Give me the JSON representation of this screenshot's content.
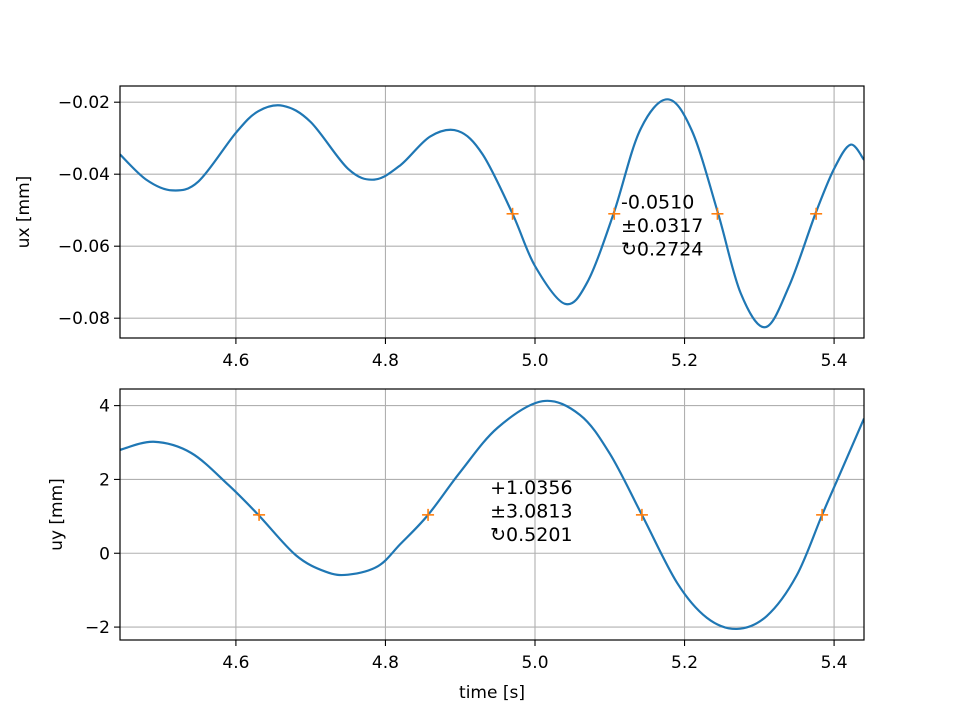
{
  "chart_data": [
    {
      "type": "line",
      "ylabel": "ux [mm]",
      "xlabel": "",
      "xlim": [
        4.445,
        5.44
      ],
      "ylim": [
        -0.0855,
        -0.0155
      ],
      "xticks": [
        4.6,
        4.8,
        5.0,
        5.2,
        5.4
      ],
      "xtick_labels": [
        "4.6",
        "4.8",
        "5.0",
        "5.2",
        "5.4"
      ],
      "yticks": [
        -0.08,
        -0.06,
        -0.04,
        -0.02
      ],
      "ytick_labels": [
        "−0.08",
        "−0.06",
        "−0.04",
        "−0.02"
      ],
      "grid": true,
      "line_color": "#1f77b4",
      "marker_color": "#ff7f0e",
      "series": [
        {
          "x": [
            4.445,
            4.48,
            4.515,
            4.55,
            4.6,
            4.63,
            4.663,
            4.7,
            4.75,
            4.785,
            4.82,
            4.86,
            4.897,
            4.93,
            4.97,
            5.0,
            5.04,
            5.07,
            5.105,
            5.14,
            5.177,
            5.21,
            5.245,
            5.275,
            5.308,
            5.34,
            5.375,
            5.4,
            5.422,
            5.44
          ],
          "y": [
            -0.0345,
            -0.0415,
            -0.0445,
            -0.042,
            -0.0285,
            -0.0225,
            -0.021,
            -0.0255,
            -0.0385,
            -0.0415,
            -0.0375,
            -0.0295,
            -0.028,
            -0.0345,
            -0.051,
            -0.0655,
            -0.076,
            -0.07,
            -0.051,
            -0.028,
            -0.0192,
            -0.028,
            -0.051,
            -0.073,
            -0.0825,
            -0.071,
            -0.051,
            -0.0385,
            -0.0318,
            -0.036
          ]
        }
      ],
      "markers": {
        "x": [
          4.97,
          5.106,
          5.244,
          5.376
        ],
        "y": [
          -0.051,
          -0.051,
          -0.051,
          -0.051
        ]
      },
      "annotation": {
        "lines": [
          "-0.0510",
          "±0.0317",
          "↻0.2724"
        ],
        "x": 5.115,
        "y": -0.0495
      }
    },
    {
      "type": "line",
      "ylabel": "uy [mm]",
      "xlabel": "time [s]",
      "xlim": [
        4.445,
        5.44
      ],
      "ylim": [
        -2.35,
        4.45
      ],
      "xticks": [
        4.6,
        4.8,
        5.0,
        5.2,
        5.4
      ],
      "xtick_labels": [
        "4.6",
        "4.8",
        "5.0",
        "5.2",
        "5.4"
      ],
      "yticks": [
        -2,
        0,
        2,
        4
      ],
      "ytick_labels": [
        "−2",
        "0",
        "2",
        "4"
      ],
      "grid": true,
      "line_color": "#1f77b4",
      "marker_color": "#ff7f0e",
      "series": [
        {
          "x": [
            4.445,
            4.49,
            4.54,
            4.59,
            4.63,
            4.68,
            4.72,
            4.75,
            4.79,
            4.82,
            4.857,
            4.9,
            4.95,
            5.01,
            5.06,
            5.1,
            5.143,
            5.19,
            5.23,
            5.27,
            5.31,
            5.35,
            5.384,
            5.41,
            5.44
          ],
          "y": [
            2.8,
            3.02,
            2.72,
            1.85,
            1.04,
            -0.05,
            -0.5,
            -0.58,
            -0.35,
            0.25,
            1.04,
            2.2,
            3.4,
            4.12,
            3.75,
            2.7,
            1.04,
            -0.8,
            -1.75,
            -2.05,
            -1.7,
            -0.6,
            1.04,
            2.25,
            3.65
          ]
        }
      ],
      "markers": {
        "x": [
          4.631,
          4.857,
          5.143,
          5.384
        ],
        "y": [
          1.04,
          1.04,
          1.04,
          1.04
        ]
      },
      "annotation": {
        "lines": [
          "+1.0356",
          "±3.0813",
          "↻0.5201"
        ],
        "x": 4.94,
        "y": 1.6
      }
    }
  ]
}
